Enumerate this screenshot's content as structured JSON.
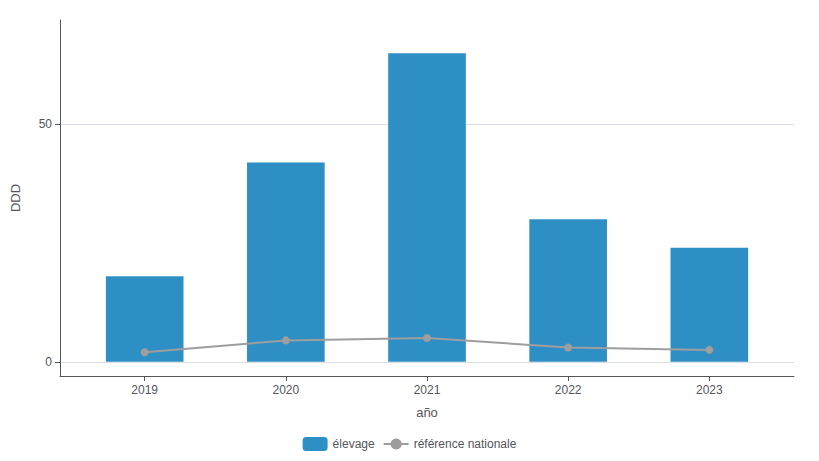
{
  "chart_data": {
    "type": "bar",
    "x": [
      2019,
      2020,
      2021,
      2022,
      2023
    ],
    "xlabel": "año",
    "ylabel": "DDD",
    "xlim": [
      2018.4,
      2023.6
    ],
    "xticks": [
      2019,
      2020,
      2021,
      2022,
      2023
    ],
    "ylim": [
      -3,
      72
    ],
    "yticks": [
      0,
      50
    ],
    "grid": true,
    "legend": "bottom",
    "series": [
      {
        "name": "élevage",
        "type": "bar",
        "color": "#2e8fc5",
        "values": [
          18,
          42,
          65,
          30,
          24
        ]
      },
      {
        "name": "référence nationale",
        "type": "line",
        "color": "#9e9e9e",
        "marker": "circle",
        "values": [
          2.0,
          4.5,
          5.0,
          3.0,
          2.5
        ]
      }
    ]
  }
}
